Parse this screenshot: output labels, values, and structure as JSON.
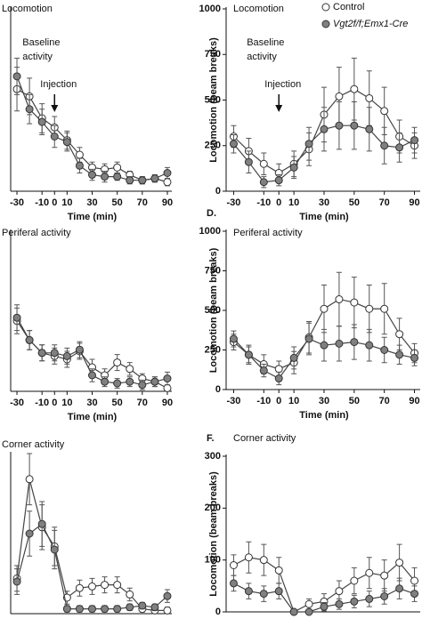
{
  "chart_data": [
    {
      "type": "line",
      "title": "Locomotion",
      "xlabel": "Time (min)",
      "annotations": {
        "baseline": [
          "Baseline",
          "activity"
        ],
        "injection": "Injection"
      },
      "x": [
        -30,
        -20,
        -10,
        0,
        10,
        20,
        30,
        40,
        50,
        60,
        70,
        80,
        90
      ],
      "xlim": [
        -35,
        95
      ],
      "xticks": [
        -30,
        -10,
        0,
        10,
        30,
        50,
        70,
        90
      ],
      "ylim": [
        0,
        100
      ],
      "series": [
        {
          "color": "#ffffff",
          "values": [
            56,
            52,
            40,
            35,
            28,
            20,
            13,
            12,
            13,
            9,
            6,
            7,
            5
          ],
          "errors": [
            12,
            10,
            8,
            6,
            5,
            4,
            3,
            3,
            3,
            2,
            2,
            2,
            2
          ]
        },
        {
          "color": "#808080",
          "values": [
            63,
            45,
            38,
            30,
            27,
            14,
            9,
            8,
            8,
            6,
            6,
            7,
            10
          ],
          "errors": [
            10,
            8,
            7,
            6,
            5,
            4,
            3,
            3,
            2,
            2,
            2,
            2,
            3
          ]
        }
      ]
    },
    {
      "type": "line",
      "title": "Locomotion",
      "xlabel": "Time (min)",
      "ylabel": "Locomotion (beam breaks)",
      "annotations": {
        "baseline": [
          "Baseline",
          "activity"
        ],
        "injection": "Injection"
      },
      "legend": "top-right",
      "x": [
        -30,
        -20,
        -10,
        0,
        10,
        20,
        30,
        40,
        50,
        60,
        70,
        80,
        90
      ],
      "xlim": [
        -35,
        95
      ],
      "xticks": [
        -30,
        -10,
        0,
        10,
        30,
        50,
        70,
        90
      ],
      "ylim": [
        0,
        1000
      ],
      "yticks": [
        0,
        250,
        500,
        750,
        1000
      ],
      "series": [
        {
          "name": "Control",
          "color": "#ffffff",
          "values": [
            300,
            220,
            150,
            100,
            150,
            230,
            420,
            520,
            560,
            510,
            440,
            300,
            250
          ],
          "errors": [
            60,
            70,
            60,
            50,
            70,
            90,
            150,
            160,
            170,
            150,
            130,
            90,
            70
          ]
        },
        {
          "name": "Vgt2f/f;Emx1-Cre",
          "color": "#808080",
          "values": [
            260,
            160,
            50,
            60,
            130,
            260,
            340,
            360,
            360,
            340,
            250,
            240,
            280
          ],
          "errors": [
            50,
            60,
            30,
            30,
            60,
            90,
            120,
            130,
            130,
            120,
            100,
            80,
            70
          ]
        }
      ]
    },
    {
      "type": "line",
      "title": "Periferal activity",
      "xlabel": "Time (min)",
      "x": [
        -30,
        -20,
        -10,
        0,
        10,
        20,
        30,
        40,
        50,
        60,
        70,
        80,
        90
      ],
      "xlim": [
        -35,
        95
      ],
      "xticks": [
        -30,
        -10,
        0,
        10,
        30,
        50,
        70,
        90
      ],
      "ylim": [
        0,
        100
      ],
      "series": [
        {
          "color": "#ffffff",
          "values": [
            44,
            32,
            24,
            22,
            20,
            25,
            15,
            10,
            18,
            14,
            8,
            6,
            2
          ],
          "errors": [
            8,
            6,
            5,
            5,
            5,
            5,
            5,
            4,
            5,
            4,
            3,
            3,
            2
          ]
        },
        {
          "color": "#808080",
          "values": [
            46,
            32,
            24,
            24,
            22,
            26,
            10,
            6,
            5,
            6,
            4,
            6,
            8
          ],
          "errors": [
            8,
            6,
            5,
            5,
            5,
            5,
            4,
            3,
            3,
            3,
            3,
            3,
            4
          ]
        }
      ]
    },
    {
      "type": "line",
      "panel_label": "D.",
      "title": "Periferal activity",
      "xlabel": "Time (min)",
      "ylabel": "Locomotion (beam breaks)",
      "x": [
        -30,
        -20,
        -10,
        0,
        10,
        20,
        30,
        40,
        50,
        60,
        70,
        80,
        90
      ],
      "xlim": [
        -35,
        95
      ],
      "xticks": [
        -30,
        -10,
        0,
        10,
        30,
        50,
        70,
        90
      ],
      "ylim": [
        0,
        1000
      ],
      "yticks": [
        0,
        250,
        500,
        750,
        1000
      ],
      "series": [
        {
          "color": "#ffffff",
          "values": [
            300,
            220,
            160,
            130,
            170,
            330,
            510,
            570,
            550,
            510,
            510,
            350,
            230
          ],
          "errors": [
            50,
            60,
            60,
            50,
            70,
            100,
            150,
            170,
            160,
            150,
            160,
            100,
            60
          ]
        },
        {
          "color": "#808080",
          "values": [
            320,
            220,
            120,
            70,
            200,
            320,
            280,
            290,
            300,
            280,
            250,
            220,
            200
          ],
          "errors": [
            50,
            50,
            40,
            40,
            70,
            100,
            100,
            110,
            110,
            100,
            80,
            60,
            50
          ]
        }
      ]
    },
    {
      "type": "line",
      "title": "Corner activity",
      "x": [
        -30,
        -20,
        -10,
        0,
        10,
        20,
        30,
        40,
        50,
        60,
        70,
        80,
        90
      ],
      "xlim": [
        -35,
        95
      ],
      "ylim": [
        0,
        100
      ],
      "series": [
        {
          "color": "#ffffff",
          "values": [
            22,
            84,
            54,
            42,
            10,
            16,
            17,
            18,
            18,
            12,
            3,
            2,
            2
          ],
          "errors": [
            8,
            16,
            14,
            12,
            4,
            5,
            5,
            5,
            5,
            4,
            2,
            2,
            2
          ]
        },
        {
          "color": "#808080",
          "values": [
            20,
            50,
            56,
            40,
            3,
            3,
            3,
            3,
            3,
            4,
            5,
            4,
            11
          ],
          "errors": [
            8,
            14,
            14,
            12,
            2,
            2,
            2,
            2,
            2,
            2,
            2,
            2,
            4
          ]
        }
      ]
    },
    {
      "type": "line",
      "panel_label": "F.",
      "title": "Corner activity",
      "ylabel": "Locomotion (beam breaks)",
      "x": [
        -30,
        -20,
        -10,
        0,
        10,
        20,
        30,
        40,
        50,
        60,
        70,
        80,
        90
      ],
      "xlim": [
        -35,
        95
      ],
      "ylim": [
        0,
        300
      ],
      "yticks": [
        0,
        100,
        200,
        300
      ],
      "series": [
        {
          "color": "#ffffff",
          "values": [
            90,
            105,
            100,
            80,
            0,
            15,
            20,
            40,
            60,
            75,
            70,
            95,
            60
          ],
          "errors": [
            20,
            30,
            30,
            25,
            5,
            10,
            15,
            20,
            25,
            30,
            30,
            35,
            25
          ]
        },
        {
          "color": "#808080",
          "values": [
            55,
            40,
            35,
            40,
            0,
            0,
            10,
            15,
            20,
            25,
            30,
            45,
            35
          ],
          "errors": [
            15,
            15,
            15,
            15,
            3,
            3,
            8,
            10,
            12,
            15,
            15,
            20,
            15
          ]
        }
      ]
    }
  ]
}
